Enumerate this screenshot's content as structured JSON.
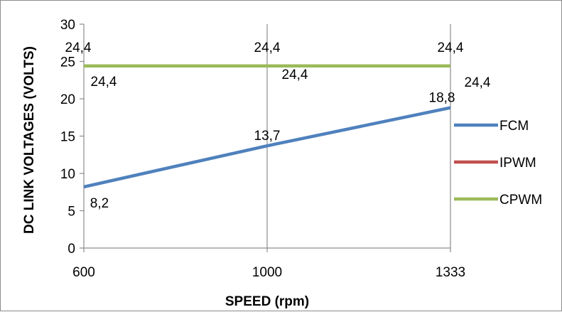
{
  "chart_data": {
    "type": "line",
    "xlabel": "SPEED (rpm)",
    "ylabel": "DC LINK VOLTAGES (VOLTS)",
    "categories": [
      "600",
      "1000",
      "1333"
    ],
    "ylim": [
      0,
      30
    ],
    "yticks": [
      "0",
      "5",
      "10",
      "15",
      "20",
      "25",
      "30"
    ],
    "grid": "vertical lines only",
    "legend_position": "right",
    "series": [
      {
        "name": "FCM",
        "values": [
          8.2,
          13.7,
          18.8
        ],
        "labels": [
          "8,2",
          "13,7",
          "18,8"
        ],
        "color": "#4f81bd"
      },
      {
        "name": "IPWM",
        "values": [
          24.4,
          24.4,
          24.4
        ],
        "labels": [
          "24,4",
          "24,4",
          "24,4"
        ],
        "color": "#c0504d"
      },
      {
        "name": "CPWM",
        "values": [
          24.4,
          24.4,
          24.4
        ],
        "labels": [
          "24,4",
          "24,4",
          "24,4"
        ],
        "color": "#9bbb59"
      }
    ]
  }
}
